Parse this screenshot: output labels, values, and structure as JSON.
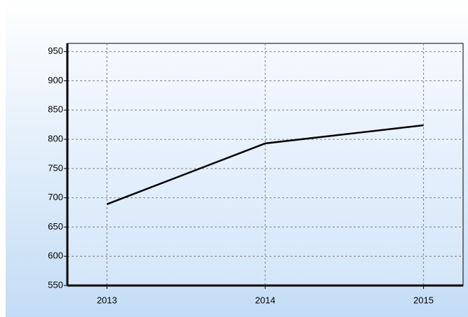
{
  "chart_data": {
    "type": "line",
    "x": [
      2013,
      2014,
      2015
    ],
    "series": [
      {
        "color": "#000000",
        "values": [
          689,
          793,
          824
        ]
      }
    ],
    "xlim": [
      2012.75,
      2015.25
    ],
    "xticks": [
      2013,
      2014,
      2015
    ],
    "ylim": [
      550,
      964
    ],
    "yticks": [
      550,
      600,
      650,
      700,
      750,
      800,
      850,
      900,
      950
    ],
    "grid": true
  }
}
